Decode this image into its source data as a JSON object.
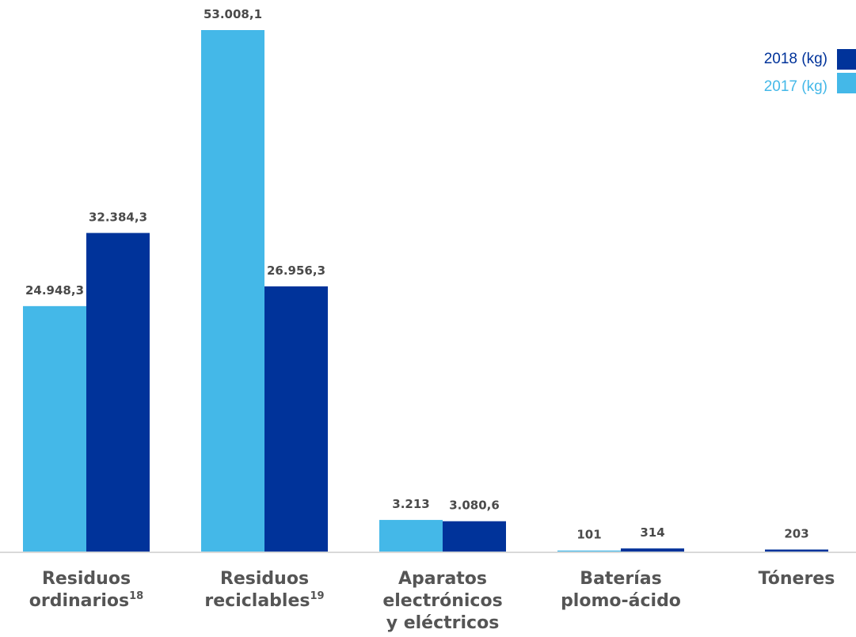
{
  "colors": {
    "series_2018": "#00339a",
    "series_2017": "#44b8e8",
    "axis": "#d9d9d9",
    "label_text": "#4a4a4a",
    "category_text": "#555555"
  },
  "legend": {
    "items": [
      {
        "label": "2018 (kg)",
        "color": "#00339a"
      },
      {
        "label": "2017 (kg)",
        "color": "#44b8e8"
      }
    ]
  },
  "chart_data": {
    "type": "bar",
    "title": "",
    "xlabel": "",
    "ylabel": "",
    "ylim": [
      0,
      53008.1
    ],
    "grid": false,
    "legend_position": "top-right",
    "categories": [
      {
        "lines": [
          "Residuos",
          "ordinarios"
        ],
        "sup": "18"
      },
      {
        "lines": [
          "Residuos",
          "reciclables"
        ],
        "sup": "19"
      },
      {
        "lines": [
          "Aparatos",
          "electrónicos",
          "y eléctricos"
        ],
        "sup": ""
      },
      {
        "lines": [
          "Baterías",
          "plomo-ácido"
        ],
        "sup": ""
      },
      {
        "lines": [
          "Tóneres"
        ],
        "sup": ""
      }
    ],
    "series": [
      {
        "name": "2017 (kg)",
        "values": [
          24948.3,
          53008.1,
          3213,
          101,
          null
        ],
        "labels": [
          "24.948,3",
          "53.008,1",
          "3.213",
          "101",
          ""
        ]
      },
      {
        "name": "2018 (kg)",
        "values": [
          32384.3,
          26956.3,
          3080.6,
          314,
          203
        ],
        "labels": [
          "32.384,3",
          "26.956,3",
          "3.080,6",
          "314",
          "203"
        ]
      }
    ]
  }
}
